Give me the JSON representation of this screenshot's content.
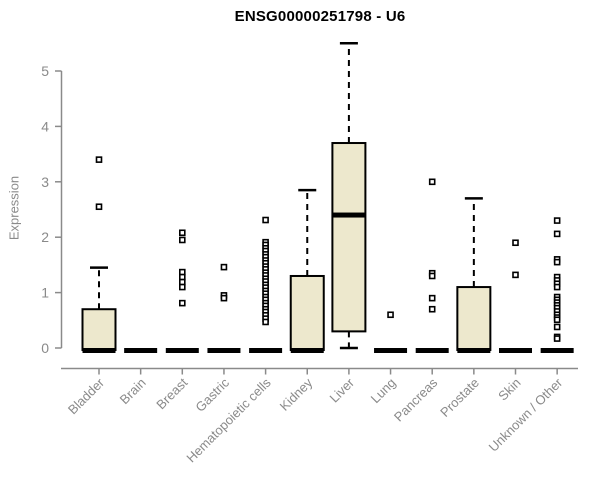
{
  "chart_data": {
    "type": "boxplot",
    "title": "ENSG00000251798 - U6",
    "ylabel": "Expression",
    "xlabel": "",
    "yticks": [
      0,
      1,
      2,
      3,
      4,
      5
    ],
    "ylim": [
      0,
      5.6
    ],
    "grid": false,
    "legend": "none",
    "categories": [
      "Bladder",
      "Brain",
      "Breast",
      "Gastric",
      "Hematopoietic cells",
      "Kidney",
      "Liver",
      "Lung",
      "Pancreas",
      "Prostate",
      "Skin",
      "Unknown / Other"
    ],
    "boxes": [
      {
        "category": "Bladder",
        "whisker_low": 0,
        "q1": 0,
        "median": 0,
        "q3": 0.7,
        "whisker_high": 1.45,
        "outliers": [
          3.4,
          2.55
        ]
      },
      {
        "category": "Brain",
        "whisker_low": 0,
        "q1": 0,
        "median": 0,
        "q3": 0,
        "whisker_high": 0,
        "outliers": []
      },
      {
        "category": "Breast",
        "whisker_low": 0,
        "q1": 0,
        "median": 0,
        "q3": 0,
        "whisker_high": 0,
        "outliers": [
          2.08,
          1.95,
          1.37,
          1.28,
          1.19,
          1.1,
          0.81
        ]
      },
      {
        "category": "Gastric",
        "whisker_low": 0,
        "q1": 0,
        "median": 0,
        "q3": 0,
        "whisker_high": 0,
        "outliers": [
          1.46,
          0.95,
          0.9
        ]
      },
      {
        "category": "Hematopoietic cells",
        "whisker_low": 0,
        "q1": 0,
        "median": 0,
        "q3": 0,
        "whisker_high": 0,
        "outliers": [
          2.31,
          1.91,
          1.86,
          1.8,
          1.75,
          1.69,
          1.64,
          1.58,
          1.53,
          1.47,
          1.42,
          1.36,
          1.31,
          1.25,
          1.2,
          1.14,
          1.09,
          1.03,
          0.98,
          0.92,
          0.87,
          0.81,
          0.76,
          0.7,
          0.65,
          0.59,
          0.53,
          0.47
        ]
      },
      {
        "category": "Kidney",
        "whisker_low": 0,
        "q1": 0,
        "median": 0,
        "q3": 1.3,
        "whisker_high": 2.85,
        "outliers": []
      },
      {
        "category": "Liver",
        "whisker_low": 0,
        "q1": 0.3,
        "median": 2.4,
        "q3": 3.7,
        "whisker_high": 5.5,
        "outliers": []
      },
      {
        "category": "Lung",
        "whisker_low": 0,
        "q1": 0,
        "median": 0,
        "q3": 0,
        "whisker_high": 0,
        "outliers": [
          0.6
        ]
      },
      {
        "category": "Pancreas",
        "whisker_low": 0,
        "q1": 0,
        "median": 0,
        "q3": 0,
        "whisker_high": 0,
        "outliers": [
          3.0,
          1.35,
          1.3,
          0.9,
          0.7
        ]
      },
      {
        "category": "Prostate",
        "whisker_low": 0,
        "q1": 0,
        "median": 0,
        "q3": 1.1,
        "whisker_high": 2.7,
        "outliers": []
      },
      {
        "category": "Skin",
        "whisker_low": 0,
        "q1": 0,
        "median": 0,
        "q3": 0,
        "whisker_high": 0,
        "outliers": [
          1.9,
          1.32
        ]
      },
      {
        "category": "Unknown / Other",
        "whisker_low": 0,
        "q1": 0,
        "median": 0,
        "q3": 0,
        "whisker_high": 0,
        "outliers": [
          2.3,
          2.06,
          1.6,
          1.55,
          1.28,
          1.22,
          1.16,
          1.1,
          0.92,
          0.87,
          0.82,
          0.77,
          0.72,
          0.66,
          0.6,
          0.55,
          0.51,
          0.38,
          0.2,
          0.17
        ]
      }
    ],
    "colors": {
      "box_fill": "#ede8cd",
      "box_border": "#000000",
      "median": "#000000",
      "whisker": "#000000",
      "outlier": "#000000",
      "axis": "#8a8a8a",
      "tick_label": "#8a8a8a",
      "title": "#000000"
    }
  }
}
